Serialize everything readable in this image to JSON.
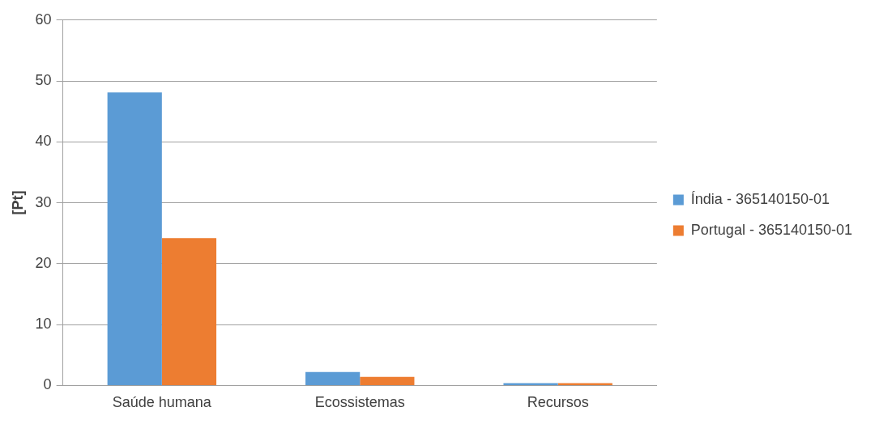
{
  "chart_data": {
    "type": "bar",
    "ylabel": "[Pt]",
    "categories": [
      "Saúde humana",
      "Ecossistemas",
      "Recursos"
    ],
    "series": [
      {
        "name": "Índia - 365140150-01",
        "color": "#5b9bd5",
        "values": [
          48.1,
          2.2,
          0.4
        ]
      },
      {
        "name": "Portugal - 365140150-01",
        "color": "#ed7d31",
        "values": [
          24.2,
          1.4,
          0.4
        ]
      }
    ],
    "ylim": [
      0,
      60
    ],
    "yticks": [
      0,
      10,
      20,
      30,
      40,
      50,
      60
    ],
    "grid": "y",
    "legend": "right"
  }
}
